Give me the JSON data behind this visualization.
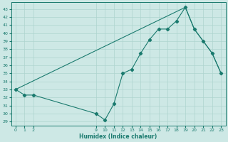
{
  "xlabel": "Humidex (Indice chaleur)",
  "bg_color": "#cde8e5",
  "grid_color": "#aed4cf",
  "line_color": "#1a7a6e",
  "xlim": [
    -0.5,
    23.5
  ],
  "ylim": [
    28.5,
    43.8
  ],
  "yticks": [
    29,
    30,
    31,
    32,
    33,
    34,
    35,
    36,
    37,
    38,
    39,
    40,
    41,
    42,
    43
  ],
  "xticks": [
    0,
    1,
    2,
    9,
    10,
    11,
    12,
    13,
    14,
    15,
    16,
    17,
    18,
    19,
    20,
    21,
    22,
    23
  ],
  "line1_x": [
    0,
    1,
    2,
    9,
    10,
    11,
    12,
    13,
    14,
    15,
    16,
    17,
    18,
    19,
    20,
    21,
    22,
    23
  ],
  "line1_y": [
    33,
    32.3,
    32.3,
    30,
    29.2,
    31.2,
    35,
    35.5,
    37.5,
    39.2,
    40.5,
    40.5,
    41.5,
    43.2,
    40.5,
    39,
    37.5,
    35
  ],
  "line2_x": [
    0,
    19,
    20,
    21,
    22,
    23
  ],
  "line2_y": [
    33,
    43.2,
    40.5,
    39,
    37.5,
    35
  ]
}
